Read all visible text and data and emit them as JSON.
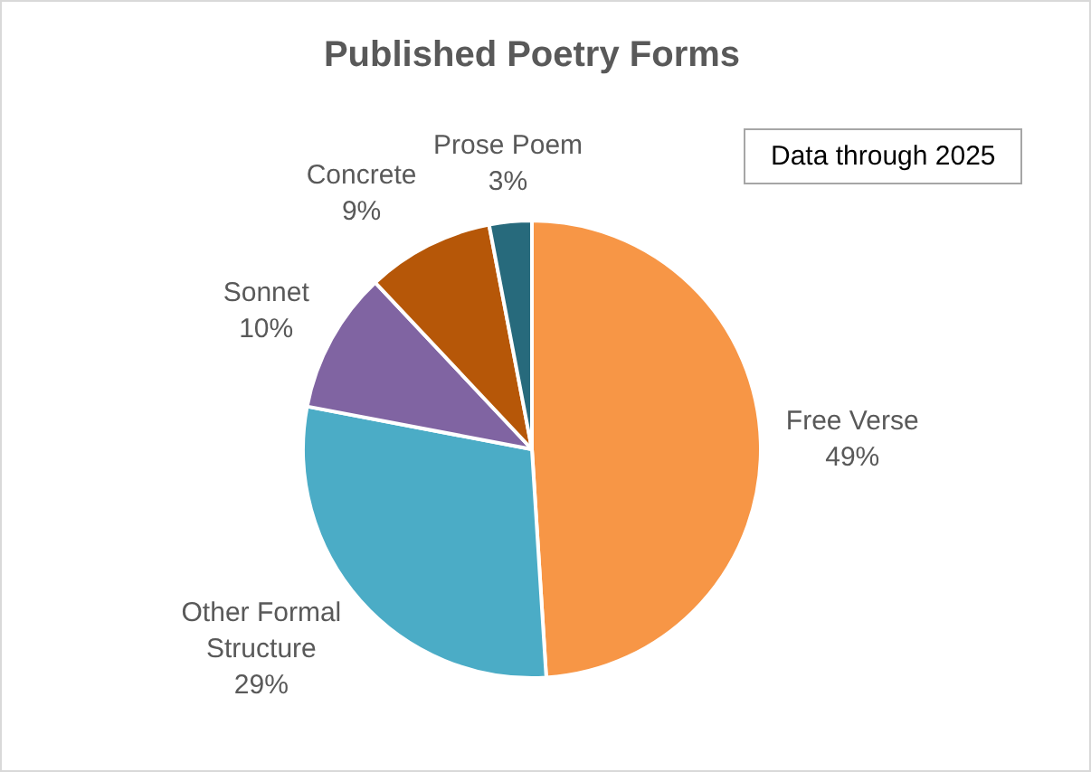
{
  "chart_data": {
    "type": "pie",
    "title": "Published Poetry Forms",
    "categories": [
      "Free Verse",
      "Other Formal Structure",
      "Sonnet",
      "Concrete",
      "Prose Poem"
    ],
    "values": [
      49,
      29,
      10,
      9,
      3
    ],
    "colors": [
      "#f79646",
      "#4bacc6",
      "#8064a2",
      "#b65708",
      "#276a7c"
    ],
    "value_labels": [
      "49%",
      "29%",
      "10%",
      "9%",
      "3%"
    ],
    "legend": false,
    "annotations": [
      "Data through 2025"
    ]
  }
}
